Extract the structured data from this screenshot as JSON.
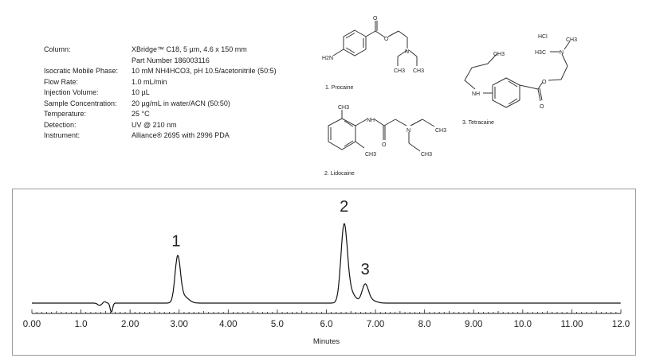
{
  "conditions": [
    {
      "label": "Column:",
      "value": "XBridge™ C18, 5 µm, 4.6 x 150 mm"
    },
    {
      "label": "",
      "value": "Part Number 186003116"
    },
    {
      "label": "Isocratic Mobile Phase:",
      "value": "10 mM NH4HCO3, pH 10.5/acetonitrile (50:5)"
    },
    {
      "label": "Flow Rate:",
      "value": "1.0 mL/min"
    },
    {
      "label": "Injection Volume:",
      "value": "10 µL"
    },
    {
      "label": "Sample Concentration:",
      "value": "20 µg/mL in water/ACN (50:50)"
    },
    {
      "label": "Temperature:",
      "value": "25 °C"
    },
    {
      "label": "Detection:",
      "value": "UV @ 210 nm"
    },
    {
      "label": "Instrument:",
      "value": "Alliance® 2695 with 2996 PDA"
    }
  ],
  "structures": {
    "procaine": {
      "caption": "1. Procaine",
      "atoms": [
        "H2N",
        "O",
        "O",
        "N",
        "CH3",
        "CH3"
      ]
    },
    "lidocaine": {
      "caption": "2. Lidocaine",
      "atoms": [
        "CH3",
        "NH",
        "O",
        "N",
        "CH3",
        "CH3",
        "CH3"
      ]
    },
    "tetracaine": {
      "caption": "3. Tetracaine",
      "atoms": [
        "HCl",
        "CH3",
        "H3C",
        "N",
        "CH3",
        "O",
        "NH",
        "O"
      ]
    }
  },
  "chart_data": {
    "type": "line",
    "xlabel": "Minutes",
    "ylabel": "",
    "xlim": [
      0,
      12
    ],
    "xticks": [
      "0.00",
      "1.0",
      "2.00",
      "3.00",
      "4.00",
      "5.0",
      "6.0",
      "7.00",
      "8.0",
      "9.00",
      "10.0",
      "11.00",
      "12.0"
    ],
    "grid": false,
    "line_color": "#111111",
    "peaks": [
      {
        "label": "1",
        "rt": 2.97,
        "relative_height": 0.6
      },
      {
        "label": "2",
        "rt": 6.36,
        "relative_height": 1.0
      },
      {
        "label": "3",
        "rt": 6.79,
        "relative_height": 0.24
      }
    ],
    "baseline_disturbance": {
      "rt": 1.62,
      "relative_height": -0.12
    }
  }
}
